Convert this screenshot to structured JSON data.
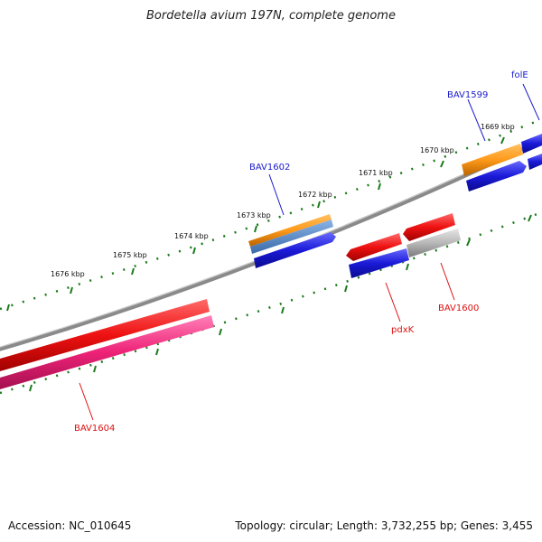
{
  "title": "Bordetella avium 197N, complete genome",
  "footer": {
    "accession": "Accession: NC_010645",
    "summary": "Topology: circular; Length: 3,732,255 bp; Genes: 3,455"
  },
  "ruler": {
    "labels": [
      "1676 kbp",
      "1675 kbp",
      "1674 kbp",
      "1673 kbp",
      "1672 kbp",
      "1671 kbp",
      "1670 kbp",
      "1669 kbp"
    ]
  },
  "genes": {
    "folE": "folE",
    "BAV1599": "BAV1599",
    "BAV1602": "BAV1602",
    "BAV1600": "BAV1600",
    "pdxK": "pdxK",
    "BAV1604": "BAV1604"
  },
  "colors": {
    "backbone": "#8a8a8a",
    "tick": "#1a7a1a",
    "orange": "#ff9a1a",
    "blue": "#1a1ad8",
    "red": "#ee1111",
    "pink": "#ee2277",
    "gray": "#b8b8b8",
    "steel": "#4a7fc0",
    "label_blue": "#1a1acc",
    "label_red": "#dd1111"
  }
}
